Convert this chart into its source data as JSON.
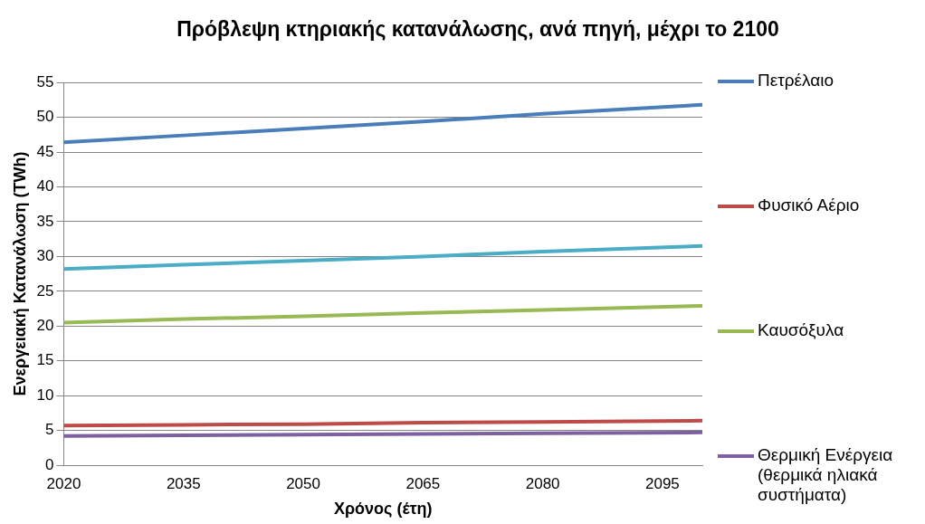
{
  "chart_data": {
    "type": "line",
    "title": "Πρόβλεψη κτηριακής κατανάλωσης, ανά πηγή, μέχρι το 2100",
    "xlabel": "Χρόνος (έτη)",
    "ylabel": "Ενεργειακή Κατανάλωση (TWh)",
    "x": [
      2020,
      2035,
      2050,
      2065,
      2080,
      2100
    ],
    "series": [
      {
        "name": "Πετρέλαιο",
        "color": "#4a7ebb",
        "values": [
          46.4,
          47.4,
          48.4,
          49.4,
          50.5,
          51.8
        ]
      },
      {
        "color": "#4bacc6",
        "values": [
          28.2,
          28.8,
          29.4,
          30.0,
          30.7,
          31.5
        ]
      },
      {
        "name": "Φυσικό Αέριο",
        "color": "#be4b48",
        "values": [
          5.7,
          5.8,
          5.9,
          6.1,
          6.2,
          6.4
        ]
      },
      {
        "name": "Καυσόξυλα",
        "color": "#98b954",
        "values": [
          20.5,
          21.0,
          21.4,
          21.9,
          22.3,
          22.9
        ]
      },
      {
        "name": "Θερμική Ενέργεια (θερμικά ηλιακά συστήματα)",
        "color": "#7d60a0",
        "values": [
          4.2,
          4.3,
          4.4,
          4.5,
          4.6,
          4.7
        ]
      }
    ],
    "xlim": [
      2020,
      2100
    ],
    "xticks": [
      2020,
      2035,
      2050,
      2065,
      2080,
      2095
    ],
    "ylim": [
      0,
      55
    ],
    "yticks": [
      0,
      5,
      10,
      15,
      20,
      25,
      30,
      35,
      40,
      45,
      50,
      55
    ],
    "grid": "y",
    "legend": "right",
    "marker": "none",
    "line_style": "solid"
  }
}
